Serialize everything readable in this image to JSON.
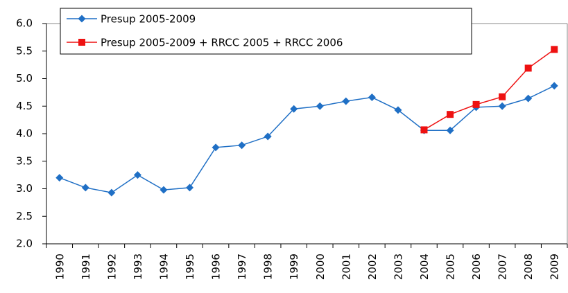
{
  "chart_data": {
    "type": "line",
    "categories": [
      "1990",
      "1991",
      "1992",
      "1993",
      "1994",
      "1995",
      "1996",
      "1997",
      "1998",
      "1999",
      "2000",
      "2001",
      "2002",
      "2003",
      "2004",
      "2005",
      "2006",
      "2007",
      "2008",
      "2009"
    ],
    "series": [
      {
        "name": "Presup 2005-2009",
        "color": "#1f6fc5",
        "marker": "diamond",
        "values": [
          3.2,
          3.02,
          2.93,
          3.25,
          2.98,
          3.02,
          3.75,
          3.79,
          3.95,
          4.45,
          4.5,
          4.59,
          4.66,
          4.43,
          4.06,
          4.06,
          4.48,
          4.5,
          4.64,
          4.87
        ]
      },
      {
        "name": "Presup 2005-2009 + RRCC 2005 + RRCC 2006",
        "color": "#ee1111",
        "marker": "square",
        "values": [
          null,
          null,
          null,
          null,
          null,
          null,
          null,
          null,
          null,
          null,
          null,
          null,
          null,
          null,
          4.07,
          4.35,
          4.53,
          4.67,
          5.19,
          5.53
        ]
      }
    ],
    "ylim": [
      2.0,
      6.0
    ],
    "yticks": [
      {
        "value": 2.0,
        "label": "2.0"
      },
      {
        "value": 2.5,
        "label": "2.5"
      },
      {
        "value": 3.0,
        "label": "3.0"
      },
      {
        "value": 3.5,
        "label": "3.5"
      },
      {
        "value": 4.0,
        "label": "4.0"
      },
      {
        "value": 4.5,
        "label": "4.5"
      },
      {
        "value": 5.0,
        "label": "5.0"
      },
      {
        "value": 5.5,
        "label": "5.5"
      },
      {
        "value": 6.0,
        "label": "6.0"
      }
    ],
    "grid": false,
    "legend": "top-left"
  }
}
